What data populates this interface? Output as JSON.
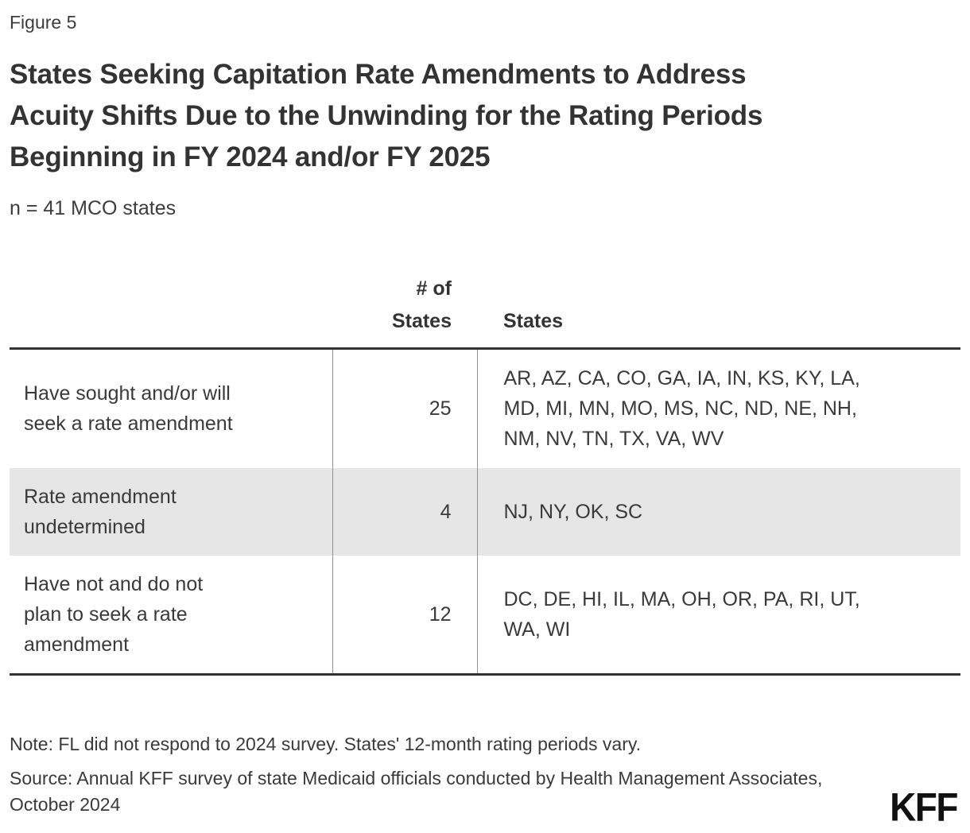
{
  "figure_label": "Figure 5",
  "chart_data": {
    "type": "table",
    "title": "States Seeking Capitation Rate Amendments to Address Acuity Shifts Due to the Unwinding for the Rating Periods Beginning in FY 2024 and/or FY 2025",
    "title_lines": [
      "States Seeking Capitation Rate Amendments to Address",
      "Acuity Shifts Due to the Unwinding for the Rating Periods",
      "Beginning in FY 2024 and/or FY 2025"
    ],
    "subtitle": "n = 41 MCO states",
    "columns": {
      "category_header": "",
      "count_header_lines": [
        "# of",
        "States"
      ],
      "states_header": "States"
    },
    "rows": [
      {
        "category": "Have sought and/or will seek a rate amendment",
        "category_lines": [
          "Have sought and/or will",
          "seek a rate amendment"
        ],
        "count": 25,
        "states": "AR, AZ, CA, CO, GA, IA, IN, KS, KY, LA, MD, MI, MN, MO, MS, NC, ND, NE, NH, NM, NV, TN, TX, VA, WV",
        "states_lines": [
          "AR, AZ, CA, CO, GA, IA, IN, KS, KY, LA,",
          "MD, MI, MN, MO, MS, NC, ND, NE, NH,",
          "NM, NV, TN, TX, VA, WV"
        ],
        "highlighted": false
      },
      {
        "category": "Rate amendment undetermined",
        "category_lines": [
          "Rate amendment",
          "undetermined"
        ],
        "count": 4,
        "states": "NJ, NY, OK, SC",
        "states_lines": [
          "NJ, NY, OK, SC"
        ],
        "highlighted": true
      },
      {
        "category": "Have not and do not plan to seek a rate amendment",
        "category_lines": [
          "Have not and do not",
          "plan to seek a rate",
          "amendment"
        ],
        "count": 12,
        "states": "DC, DE, HI, IL, MA, OH, OR, PA, RI, UT, WA, WI",
        "states_lines": [
          "DC, DE, HI, IL, MA, OH, OR, PA, RI, UT,",
          "WA, WI"
        ],
        "highlighted": false
      }
    ]
  },
  "note": "Note: FL did not respond to 2024 survey. States' 12-month rating periods vary.",
  "source": "Source: Annual KFF survey of state Medicaid officials conducted by Health Management Associates, October 2024",
  "logo_text": "KFF",
  "colors": {
    "text": "#3a3a3a",
    "title_text": "#333333",
    "border_dark": "#333333",
    "border_light": "#909090",
    "row_highlight": "#e6e6e6",
    "logo": "#111111",
    "background": "#ffffff"
  }
}
